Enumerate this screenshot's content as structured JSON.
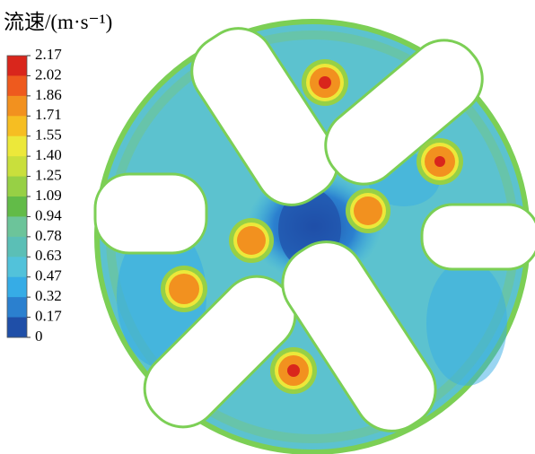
{
  "chart_data": {
    "type": "contour",
    "title": "流速/(m·s⁻¹)",
    "colorbar": {
      "ticks": [
        2.17,
        2.02,
        1.86,
        1.71,
        1.55,
        {
          "value": 1.4,
          "label": "1.40"
        },
        1.25,
        1.09,
        0.94,
        0.78,
        0.63,
        0.47,
        0.32,
        0.17,
        0
      ],
      "colors": [
        "#d9261c",
        "#ee5a1e",
        "#f2911f",
        "#f6be22",
        "#ece83a",
        "#c9df3c",
        "#97d045",
        "#62bb48",
        "#6cc49a",
        "#5bbfb6",
        "#52c2da",
        "#36ace6",
        "#2b80cf",
        "#1f4fa8"
      ]
    }
  }
}
